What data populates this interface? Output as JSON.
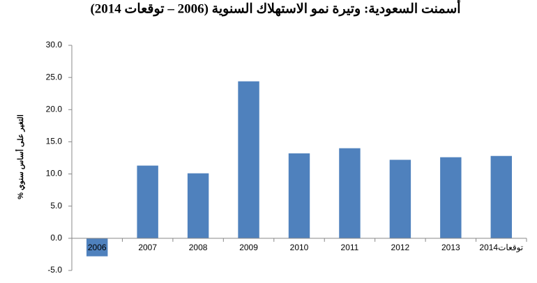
{
  "chart_data": {
    "type": "bar",
    "title": "أسمنت السعودية: وتيرة نمو الاستهلاك السنوية (2006 – توقعات 2014)",
    "y_label": "التغير على أساس سنوي %",
    "categories": [
      "2006",
      "2007",
      "2008",
      "2009",
      "2010",
      "2011",
      "2012",
      "2013",
      "توقعات2014"
    ],
    "values": [
      -2.8,
      11.3,
      10.1,
      24.4,
      13.2,
      14.0,
      12.2,
      12.6,
      12.8
    ],
    "color": "#4f81bd",
    "ylim": [
      -5,
      30
    ],
    "yticks": [
      {
        "value": -5,
        "label": "-5.0"
      },
      {
        "value": 0,
        "label": "0.0"
      },
      {
        "value": 5,
        "label": "5.0"
      },
      {
        "value": 10,
        "label": "10.0"
      },
      {
        "value": 15,
        "label": "15.0"
      },
      {
        "value": 20,
        "label": "20.0"
      },
      {
        "value": 25,
        "label": "25.0"
      },
      {
        "value": 30,
        "label": "30.0"
      }
    ],
    "grid": false
  }
}
